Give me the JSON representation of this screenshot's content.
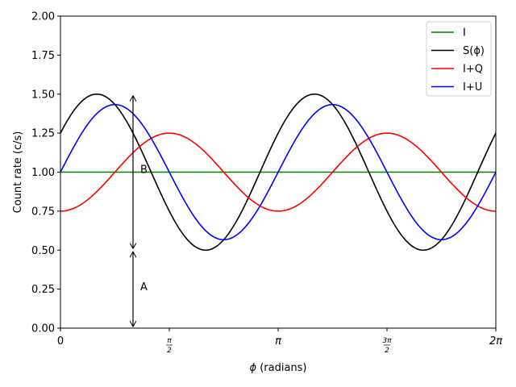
{
  "chart_data": {
    "type": "line",
    "xlabel_symbol": "ϕ",
    "xlabel_rest": " (radians)",
    "ylabel": "Count rate (c/s)",
    "xlim": [
      0,
      6.283185307
    ],
    "ylim": [
      0,
      2.0
    ],
    "grid": false,
    "legend_position": "top-right",
    "xticks": [
      {
        "value": 0,
        "label": "0"
      },
      {
        "value": 1.5707963,
        "num": "π",
        "den": "2"
      },
      {
        "value": 3.1415927,
        "label": "π"
      },
      {
        "value": 4.712389,
        "num": "3π",
        "den": "2"
      },
      {
        "value": 6.2831853,
        "label": "2π"
      }
    ],
    "yticks": [
      "0.00",
      "0.25",
      "0.50",
      "0.75",
      "1.00",
      "1.25",
      "1.50",
      "1.75",
      "2.00"
    ],
    "series": [
      {
        "name": "I",
        "color": "#008000",
        "formula": "1"
      },
      {
        "name": "S(ϕ)",
        "color": "#000000",
        "formula": "1 + 0.25*cos(2x) + 0.433*sin(2x)"
      },
      {
        "name": "I+Q",
        "color": "#ff0000",
        "formula": "1 - 0.25*cos(2x)"
      },
      {
        "name": "I+U",
        "color": "#0000ff",
        "formula": "1 + 0.433*sin(2x)"
      }
    ],
    "annotations": [
      {
        "label": "B",
        "x": 1.047,
        "y_from": 0.5,
        "y_to": 1.5,
        "label_y": 1.02
      },
      {
        "label": "A",
        "x": 1.047,
        "y_from": 0.0,
        "y_to": 0.5,
        "label_y": 0.27
      }
    ]
  }
}
